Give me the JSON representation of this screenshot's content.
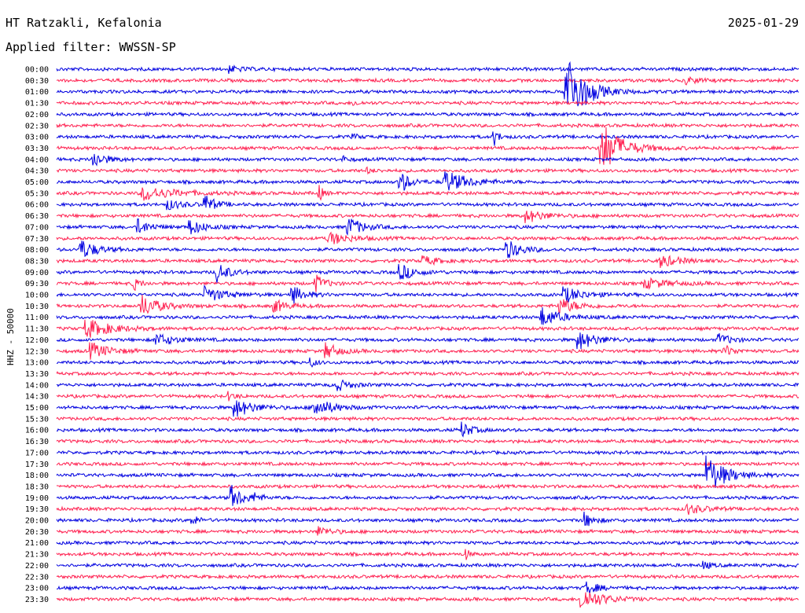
{
  "header": {
    "station": "HT Ratzakli, Kefalonia",
    "date": "2025-01-29",
    "filter": "Applied filter: WWSSN-SP"
  },
  "chart_data": {
    "type": "helicorder",
    "title": "HT Ratzakli, Kefalonia",
    "date": "2025-01-29",
    "filter": "WWSSN-SP",
    "ylabel": "HHZ - 50000",
    "row_interval_minutes": 30,
    "trace_colors": [
      "#0000e0",
      "#ff2050"
    ],
    "ticks": [
      "00:00",
      "00:30",
      "01:00",
      "01:30",
      "02:00",
      "02:30",
      "03:00",
      "03:30",
      "04:00",
      "04:30",
      "05:00",
      "05:30",
      "06:00",
      "06:30",
      "07:00",
      "07:30",
      "08:00",
      "08:30",
      "09:00",
      "09:30",
      "10:00",
      "10:30",
      "11:00",
      "11:30",
      "12:00",
      "12:30",
      "13:00",
      "13:30",
      "14:00",
      "14:30",
      "15:00",
      "15:30",
      "16:00",
      "16:30",
      "17:00",
      "17:30",
      "18:00",
      "18:30",
      "19:00",
      "19:30",
      "20:00",
      "20:30",
      "21:00",
      "21:30",
      "22:00",
      "22:30",
      "23:00",
      "23:30"
    ],
    "events": [
      {
        "row": 0,
        "minute": 7.0,
        "amp": 4,
        "dur": 1.0
      },
      {
        "row": 1,
        "minute": 25.5,
        "amp": 4,
        "dur": 1.0
      },
      {
        "row": 2,
        "minute": 20.6,
        "amp": 50,
        "dur": 1.5
      },
      {
        "row": 3,
        "minute": 12.0,
        "amp": 3,
        "dur": 0.5
      },
      {
        "row": 6,
        "minute": 17.7,
        "amp": 10,
        "dur": 0.4
      },
      {
        "row": 6,
        "minute": 12.0,
        "amp": 3,
        "dur": 0.5
      },
      {
        "row": 7,
        "minute": 22.0,
        "amp": 35,
        "dur": 1.6
      },
      {
        "row": 8,
        "minute": 1.5,
        "amp": 10,
        "dur": 1.0
      },
      {
        "row": 8,
        "minute": 11.6,
        "amp": 3,
        "dur": 0.5
      },
      {
        "row": 9,
        "minute": 12.6,
        "amp": 3,
        "dur": 0.5
      },
      {
        "row": 10,
        "minute": 13.9,
        "amp": 14,
        "dur": 0.8
      },
      {
        "row": 10,
        "minute": 15.7,
        "amp": 14,
        "dur": 1.8
      },
      {
        "row": 11,
        "minute": 3.5,
        "amp": 9,
        "dur": 2.5
      },
      {
        "row": 11,
        "minute": 10.6,
        "amp": 12,
        "dur": 0.3
      },
      {
        "row": 12,
        "minute": 4.5,
        "amp": 6,
        "dur": 1.2
      },
      {
        "row": 12,
        "minute": 6.0,
        "amp": 12,
        "dur": 0.8
      },
      {
        "row": 13,
        "minute": 19.0,
        "amp": 8,
        "dur": 1.5
      },
      {
        "row": 14,
        "minute": 3.3,
        "amp": 9,
        "dur": 1.0
      },
      {
        "row": 14,
        "minute": 5.4,
        "amp": 9,
        "dur": 1.2
      },
      {
        "row": 14,
        "minute": 11.8,
        "amp": 12,
        "dur": 1.2
      },
      {
        "row": 15,
        "minute": 11.0,
        "amp": 8,
        "dur": 1.6
      },
      {
        "row": 16,
        "minute": 1.0,
        "amp": 12,
        "dur": 1.3
      },
      {
        "row": 16,
        "minute": 18.2,
        "amp": 12,
        "dur": 1.2
      },
      {
        "row": 17,
        "minute": 14.8,
        "amp": 6,
        "dur": 1.2
      },
      {
        "row": 17,
        "minute": 24.4,
        "amp": 8,
        "dur": 1.5
      },
      {
        "row": 18,
        "minute": 6.5,
        "amp": 12,
        "dur": 1.0
      },
      {
        "row": 18,
        "minute": 13.9,
        "amp": 10,
        "dur": 1.2
      },
      {
        "row": 19,
        "minute": 3.1,
        "amp": 9,
        "dur": 0.5
      },
      {
        "row": 19,
        "minute": 10.5,
        "amp": 10,
        "dur": 0.8
      },
      {
        "row": 19,
        "minute": 23.8,
        "amp": 6,
        "dur": 2.0
      },
      {
        "row": 20,
        "minute": 6.0,
        "amp": 10,
        "dur": 1.5
      },
      {
        "row": 20,
        "minute": 9.5,
        "amp": 12,
        "dur": 1.0
      },
      {
        "row": 20,
        "minute": 20.5,
        "amp": 10,
        "dur": 1.5
      },
      {
        "row": 21,
        "minute": 3.4,
        "amp": 15,
        "dur": 1.4
      },
      {
        "row": 21,
        "minute": 8.8,
        "amp": 8,
        "dur": 1.0
      },
      {
        "row": 21,
        "minute": 20.3,
        "amp": 10,
        "dur": 1.5
      },
      {
        "row": 22,
        "minute": 19.6,
        "amp": 12,
        "dur": 1.5
      },
      {
        "row": 23,
        "minute": 1.2,
        "amp": 12,
        "dur": 2.0
      },
      {
        "row": 24,
        "minute": 4.0,
        "amp": 8,
        "dur": 1.5
      },
      {
        "row": 24,
        "minute": 21.1,
        "amp": 12,
        "dur": 1.5
      },
      {
        "row": 24,
        "minute": 26.8,
        "amp": 7,
        "dur": 1.0
      },
      {
        "row": 25,
        "minute": 1.4,
        "amp": 10,
        "dur": 1.5
      },
      {
        "row": 25,
        "minute": 10.9,
        "amp": 10,
        "dur": 1.0
      },
      {
        "row": 25,
        "minute": 27.0,
        "amp": 7,
        "dur": 0.8
      },
      {
        "row": 26,
        "minute": 10.3,
        "amp": 5,
        "dur": 0.5
      },
      {
        "row": 28,
        "minute": 11.3,
        "amp": 8,
        "dur": 1.0
      },
      {
        "row": 29,
        "minute": 7.0,
        "amp": 5,
        "dur": 0.5
      },
      {
        "row": 30,
        "minute": 7.2,
        "amp": 12,
        "dur": 1.5
      },
      {
        "row": 30,
        "minute": 10.4,
        "amp": 12,
        "dur": 1.5
      },
      {
        "row": 32,
        "minute": 16.4,
        "amp": 10,
        "dur": 0.8
      },
      {
        "row": 36,
        "minute": 26.3,
        "amp": 25,
        "dur": 1.5
      },
      {
        "row": 38,
        "minute": 7.1,
        "amp": 14,
        "dur": 1.0
      },
      {
        "row": 38,
        "minute": 8.0,
        "amp": 4,
        "dur": 0.5
      },
      {
        "row": 39,
        "minute": 25.5,
        "amp": 6,
        "dur": 1.5
      },
      {
        "row": 40,
        "minute": 5.5,
        "amp": 7,
        "dur": 0.5
      },
      {
        "row": 40,
        "minute": 21.3,
        "amp": 10,
        "dur": 0.8
      },
      {
        "row": 41,
        "minute": 10.6,
        "amp": 6,
        "dur": 1.0
      },
      {
        "row": 43,
        "minute": 16.5,
        "amp": 9,
        "dur": 0.3
      },
      {
        "row": 44,
        "minute": 26.2,
        "amp": 5,
        "dur": 0.5
      },
      {
        "row": 46,
        "minute": 21.4,
        "amp": 8,
        "dur": 1.0
      },
      {
        "row": 47,
        "minute": 21.2,
        "amp": 14,
        "dur": 1.8
      }
    ]
  }
}
